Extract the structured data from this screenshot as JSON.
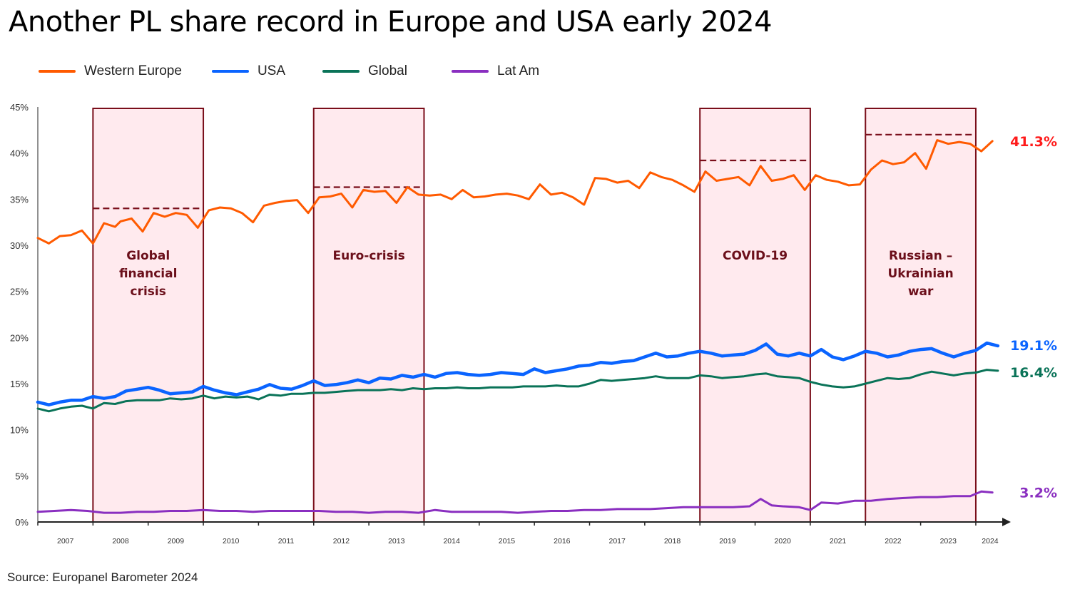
{
  "title": "Another PL share record in Europe and USA early 2024",
  "source": "Source: Europanel Barometer 2024",
  "colors": {
    "western_europe": "#ff5a00",
    "usa": "#0a64ff",
    "global": "#0a7358",
    "lat_am": "#8a2fc0",
    "period_fill": "#ffeaee",
    "period_border": "#7a0e1a",
    "end_label_we": "#ff1a1a"
  },
  "chart_data": {
    "type": "line",
    "title": "Another PL share record in Europe and USA early 2024",
    "xlabel": "",
    "ylabel": "",
    "ylim": [
      0,
      45
    ],
    "xlim": [
      2007.0,
      2024.4
    ],
    "y_ticks": [
      "0%",
      "5%",
      "10%",
      "15%",
      "20%",
      "25%",
      "30%",
      "35%",
      "40%",
      "45%"
    ],
    "y_tick_values": [
      0,
      5,
      10,
      15,
      20,
      25,
      30,
      35,
      40,
      45
    ],
    "x_ticks": [
      "2007",
      "2008",
      "2009",
      "2010",
      "2011",
      "2012",
      "2013",
      "2014",
      "2015",
      "2016",
      "2017",
      "2018",
      "2019",
      "2020",
      "2021",
      "2022",
      "2023",
      "2024"
    ],
    "grid": false,
    "legend": "top-left",
    "series": [
      {
        "name": "Western Europe",
        "color": "#ff5a00",
        "end_label": "41.3%",
        "x": [
          2007.0,
          2007.2,
          2007.4,
          2007.6,
          2007.8,
          2008.0,
          2008.2,
          2008.4,
          2008.5,
          2008.7,
          2008.9,
          2009.1,
          2009.3,
          2009.5,
          2009.7,
          2009.9,
          2010.1,
          2010.3,
          2010.5,
          2010.7,
          2010.9,
          2011.1,
          2011.3,
          2011.5,
          2011.7,
          2011.9,
          2012.1,
          2012.3,
          2012.5,
          2012.7,
          2012.9,
          2013.1,
          2013.3,
          2013.5,
          2013.7,
          2013.9,
          2014.1,
          2014.3,
          2014.5,
          2014.7,
          2014.9,
          2015.1,
          2015.3,
          2015.5,
          2015.7,
          2015.9,
          2016.1,
          2016.3,
          2016.5,
          2016.7,
          2016.9,
          2017.1,
          2017.3,
          2017.5,
          2017.7,
          2017.9,
          2018.1,
          2018.3,
          2018.5,
          2018.7,
          2018.9,
          2019.1,
          2019.3,
          2019.5,
          2019.7,
          2019.9,
          2020.1,
          2020.3,
          2020.5,
          2020.7,
          2020.9,
          2021.1,
          2021.3,
          2021.5,
          2021.7,
          2021.9,
          2022.1,
          2022.3,
          2022.5,
          2022.7,
          2022.9,
          2023.1,
          2023.3,
          2023.5,
          2023.7,
          2023.9,
          2024.1,
          2024.3
        ],
        "values": [
          30.8,
          30.2,
          31.0,
          31.1,
          31.6,
          30.2,
          32.4,
          32.0,
          32.6,
          32.9,
          31.5,
          33.5,
          33.1,
          33.5,
          33.3,
          31.9,
          33.8,
          34.1,
          34.0,
          33.5,
          32.5,
          34.3,
          34.6,
          34.8,
          34.9,
          33.5,
          35.2,
          35.3,
          35.6,
          34.1,
          36.0,
          35.8,
          35.9,
          34.6,
          36.3,
          35.5,
          35.4,
          35.5,
          35.0,
          36.0,
          35.2,
          35.3,
          35.5,
          35.6,
          35.4,
          35.0,
          36.6,
          35.5,
          35.7,
          35.2,
          34.4,
          37.3,
          37.2,
          36.8,
          37.0,
          36.2,
          37.9,
          37.4,
          37.1,
          36.5,
          35.8,
          38.0,
          37.0,
          37.2,
          37.4,
          36.5,
          38.6,
          37.0,
          37.2,
          37.6,
          36.0,
          37.6,
          37.1,
          36.9,
          36.5,
          36.6,
          38.2,
          39.2,
          38.8,
          39.0,
          40.0,
          38.3,
          41.4,
          41.0,
          41.2,
          41.0,
          40.2,
          41.3
        ],
        "last_value": 41.3
      },
      {
        "name": "USA",
        "color": "#0a64ff",
        "end_label": "19.1%",
        "x": [
          2007.0,
          2007.2,
          2007.4,
          2007.6,
          2007.8,
          2008.0,
          2008.2,
          2008.4,
          2008.6,
          2008.8,
          2009.0,
          2009.2,
          2009.4,
          2009.6,
          2009.8,
          2010.0,
          2010.2,
          2010.4,
          2010.6,
          2010.8,
          2011.0,
          2011.2,
          2011.4,
          2011.6,
          2011.8,
          2012.0,
          2012.2,
          2012.4,
          2012.6,
          2012.8,
          2013.0,
          2013.2,
          2013.4,
          2013.6,
          2013.8,
          2014.0,
          2014.2,
          2014.4,
          2014.6,
          2014.8,
          2015.0,
          2015.2,
          2015.4,
          2015.6,
          2015.8,
          2016.0,
          2016.2,
          2016.4,
          2016.6,
          2016.8,
          2017.0,
          2017.2,
          2017.4,
          2017.6,
          2017.8,
          2018.0,
          2018.2,
          2018.4,
          2018.6,
          2018.8,
          2019.0,
          2019.2,
          2019.4,
          2019.6,
          2019.8,
          2020.0,
          2020.2,
          2020.4,
          2020.6,
          2020.8,
          2021.0,
          2021.2,
          2021.4,
          2021.6,
          2021.8,
          2022.0,
          2022.2,
          2022.4,
          2022.6,
          2022.8,
          2023.0,
          2023.2,
          2023.4,
          2023.6,
          2023.8,
          2024.0,
          2024.2,
          2024.4
        ],
        "values": [
          13.0,
          12.7,
          13.0,
          13.2,
          13.2,
          13.6,
          13.4,
          13.6,
          14.2,
          14.4,
          14.6,
          14.3,
          13.9,
          14.0,
          14.1,
          14.7,
          14.3,
          14.0,
          13.8,
          14.1,
          14.4,
          14.9,
          14.5,
          14.4,
          14.8,
          15.3,
          14.8,
          14.9,
          15.1,
          15.4,
          15.1,
          15.6,
          15.5,
          15.9,
          15.7,
          16.0,
          15.7,
          16.1,
          16.2,
          16.0,
          15.9,
          16.0,
          16.2,
          16.1,
          16.0,
          16.6,
          16.2,
          16.4,
          16.6,
          16.9,
          17.0,
          17.3,
          17.2,
          17.4,
          17.5,
          17.9,
          18.3,
          17.9,
          18.0,
          18.3,
          18.5,
          18.3,
          18.0,
          18.1,
          18.2,
          18.6,
          19.3,
          18.2,
          18.0,
          18.3,
          18.0,
          18.7,
          17.9,
          17.6,
          18.0,
          18.5,
          18.3,
          17.9,
          18.1,
          18.5,
          18.7,
          18.8,
          18.3,
          17.9,
          18.3,
          18.6,
          19.4,
          19.1
        ],
        "last_value": 19.1
      },
      {
        "name": "Global",
        "color": "#0a7358",
        "end_label": "16.4%",
        "x": [
          2007.0,
          2007.2,
          2007.4,
          2007.6,
          2007.8,
          2008.0,
          2008.2,
          2008.4,
          2008.6,
          2008.8,
          2009.0,
          2009.2,
          2009.4,
          2009.6,
          2009.8,
          2010.0,
          2010.2,
          2010.4,
          2010.6,
          2010.8,
          2011.0,
          2011.2,
          2011.4,
          2011.6,
          2011.8,
          2012.0,
          2012.2,
          2012.4,
          2012.6,
          2012.8,
          2013.0,
          2013.2,
          2013.4,
          2013.6,
          2013.8,
          2014.0,
          2014.2,
          2014.4,
          2014.6,
          2014.8,
          2015.0,
          2015.2,
          2015.4,
          2015.6,
          2015.8,
          2016.0,
          2016.2,
          2016.4,
          2016.6,
          2016.8,
          2017.0,
          2017.2,
          2017.4,
          2017.6,
          2017.8,
          2018.0,
          2018.2,
          2018.4,
          2018.6,
          2018.8,
          2019.0,
          2019.2,
          2019.4,
          2019.6,
          2019.8,
          2020.0,
          2020.2,
          2020.4,
          2020.6,
          2020.8,
          2021.0,
          2021.2,
          2021.4,
          2021.6,
          2021.8,
          2022.0,
          2022.2,
          2022.4,
          2022.6,
          2022.8,
          2023.0,
          2023.2,
          2023.4,
          2023.6,
          2023.8,
          2024.0,
          2024.2,
          2024.4
        ],
        "values": [
          12.3,
          12.0,
          12.3,
          12.5,
          12.6,
          12.3,
          12.9,
          12.8,
          13.1,
          13.2,
          13.2,
          13.2,
          13.4,
          13.3,
          13.4,
          13.7,
          13.4,
          13.6,
          13.5,
          13.6,
          13.3,
          13.8,
          13.7,
          13.9,
          13.9,
          14.0,
          14.0,
          14.1,
          14.2,
          14.3,
          14.3,
          14.3,
          14.4,
          14.3,
          14.5,
          14.4,
          14.5,
          14.5,
          14.6,
          14.5,
          14.5,
          14.6,
          14.6,
          14.6,
          14.7,
          14.7,
          14.7,
          14.8,
          14.7,
          14.7,
          15.0,
          15.4,
          15.3,
          15.4,
          15.5,
          15.6,
          15.8,
          15.6,
          15.6,
          15.6,
          15.9,
          15.8,
          15.6,
          15.7,
          15.8,
          16.0,
          16.1,
          15.8,
          15.7,
          15.6,
          15.2,
          14.9,
          14.7,
          14.6,
          14.7,
          15.0,
          15.3,
          15.6,
          15.5,
          15.6,
          16.0,
          16.3,
          16.1,
          15.9,
          16.1,
          16.2,
          16.5,
          16.4
        ],
        "last_value": 16.4
      },
      {
        "name": "Lat Am",
        "color": "#8a2fc0",
        "end_label": "3.2%",
        "x": [
          2007.0,
          2007.3,
          2007.6,
          2007.9,
          2008.2,
          2008.5,
          2008.8,
          2009.1,
          2009.4,
          2009.7,
          2010.0,
          2010.3,
          2010.6,
          2010.9,
          2011.2,
          2011.5,
          2011.8,
          2012.1,
          2012.4,
          2012.7,
          2013.0,
          2013.3,
          2013.6,
          2013.9,
          2014.2,
          2014.5,
          2014.8,
          2015.1,
          2015.4,
          2015.7,
          2016.0,
          2016.3,
          2016.6,
          2016.9,
          2017.2,
          2017.5,
          2017.8,
          2018.1,
          2018.4,
          2018.7,
          2019.0,
          2019.3,
          2019.6,
          2019.9,
          2020.1,
          2020.3,
          2020.5,
          2020.8,
          2021.0,
          2021.2,
          2021.5,
          2021.8,
          2022.1,
          2022.4,
          2022.7,
          2023.0,
          2023.3,
          2023.6,
          2023.9,
          2024.1,
          2024.3
        ],
        "values": [
          1.1,
          1.2,
          1.3,
          1.2,
          1.0,
          1.0,
          1.1,
          1.1,
          1.2,
          1.2,
          1.3,
          1.2,
          1.2,
          1.1,
          1.2,
          1.2,
          1.2,
          1.2,
          1.1,
          1.1,
          1.0,
          1.1,
          1.1,
          1.0,
          1.3,
          1.1,
          1.1,
          1.1,
          1.1,
          1.0,
          1.1,
          1.2,
          1.2,
          1.3,
          1.3,
          1.4,
          1.4,
          1.4,
          1.5,
          1.6,
          1.6,
          1.6,
          1.6,
          1.7,
          2.5,
          1.8,
          1.7,
          1.6,
          1.3,
          2.1,
          2.0,
          2.3,
          2.3,
          2.5,
          2.6,
          2.7,
          2.7,
          2.8,
          2.8,
          3.3,
          3.2
        ],
        "last_value": 3.2
      }
    ],
    "annotations": [
      {
        "type": "period",
        "label_lines": [
          "Global",
          "financial",
          "crisis"
        ],
        "start": 2008.0,
        "end": 2010.0,
        "dashed_max": 34.0
      },
      {
        "type": "period",
        "label_lines": [
          "Euro-crisis"
        ],
        "start": 2012.0,
        "end": 2014.0,
        "dashed_max": 36.3
      },
      {
        "type": "period",
        "label_lines": [
          "COVID-19"
        ],
        "start": 2019.0,
        "end": 2021.0,
        "dashed_max": 39.2
      },
      {
        "type": "period",
        "label_lines": [
          "Russian –",
          "Ukrainian",
          "war"
        ],
        "start": 2022.0,
        "end": 2024.0,
        "dashed_max": 42.0
      }
    ]
  },
  "legend": [
    {
      "label": "Western Europe",
      "color": "#ff5a00"
    },
    {
      "label": "USA",
      "color": "#0a64ff"
    },
    {
      "label": "Global",
      "color": "#0a7358"
    },
    {
      "label": "Lat Am",
      "color": "#8a2fc0"
    }
  ]
}
